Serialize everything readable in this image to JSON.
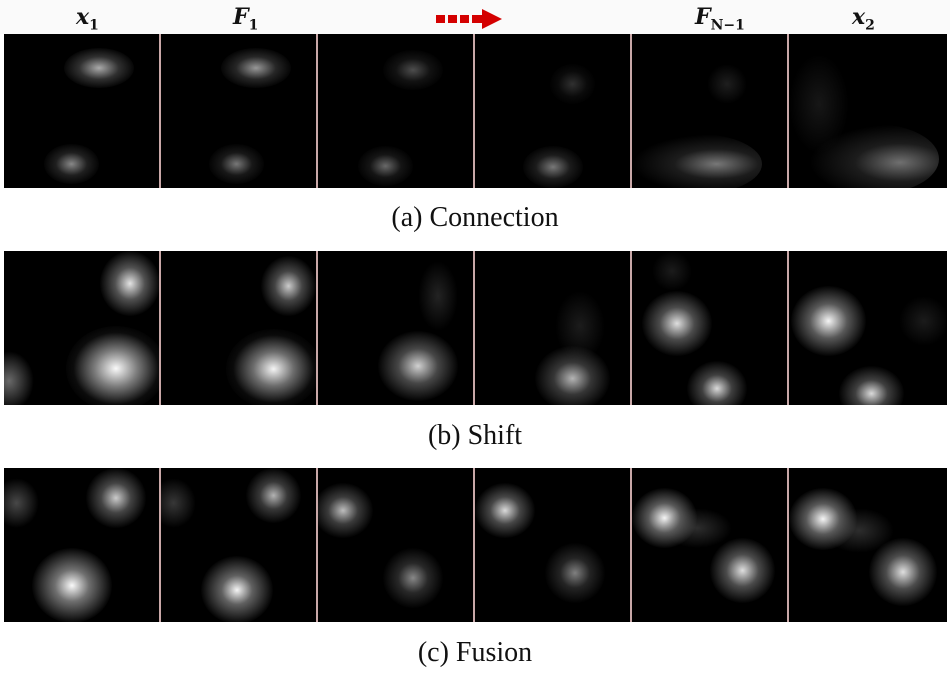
{
  "header": {
    "labels": [
      {
        "base": "x",
        "sub": "1"
      },
      {
        "base": "F",
        "sub": "1"
      },
      {
        "base": "F",
        "sub": "N−1"
      },
      {
        "base": "x",
        "sub": "2"
      }
    ],
    "arrow_color": "#d40000"
  },
  "rows": [
    {
      "caption": "(a)  Connection"
    },
    {
      "caption": "(b)  Shift"
    },
    {
      "caption": "(c)  Fusion"
    }
  ]
}
